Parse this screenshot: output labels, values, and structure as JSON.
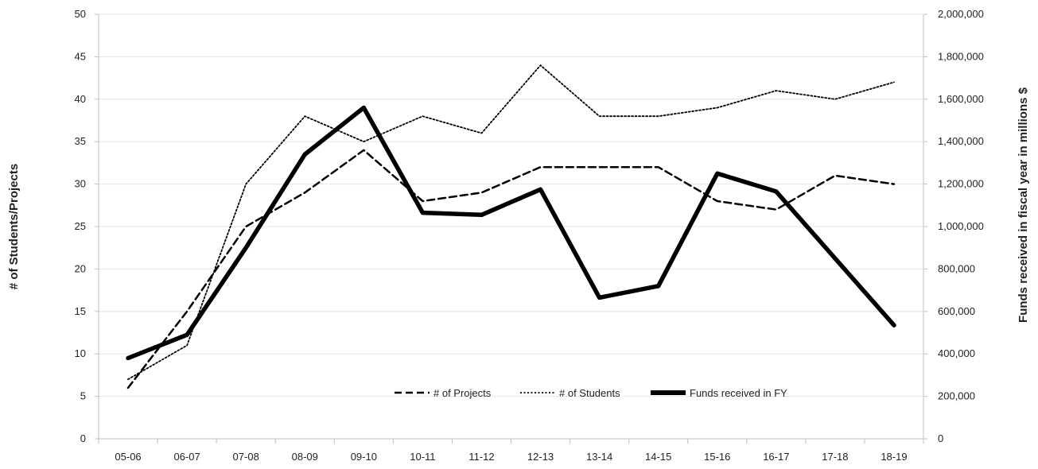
{
  "chart_data": {
    "type": "line",
    "categories": [
      "05-06",
      "06-07",
      "07-08",
      "08-09",
      "09-10",
      "10-11",
      "11-12",
      "12-13",
      "13-14",
      "14-15",
      "15-16",
      "16-17",
      "17-18",
      "18-19"
    ],
    "y_left": {
      "label": "# of Students/Projects",
      "range": [
        0,
        50
      ],
      "ticks": [
        "0",
        "5",
        "10",
        "15",
        "20",
        "25",
        "30",
        "35",
        "40",
        "45",
        "50"
      ],
      "tick_values": [
        0,
        5,
        10,
        15,
        20,
        25,
        30,
        35,
        40,
        45,
        50
      ]
    },
    "y_right": {
      "label": "Funds received in fiscal year in millions $",
      "range": [
        0,
        2000000
      ],
      "ticks": [
        "0",
        "200,000",
        "400,000",
        "600,000",
        "800,000",
        "1,000,000",
        "1,200,000",
        "1,400,000",
        "1,600,000",
        "1,800,000",
        "2,000,000"
      ],
      "tick_values": [
        0,
        200000,
        400000,
        600000,
        800000,
        1000000,
        1200000,
        1400000,
        1600000,
        1800000,
        2000000
      ]
    },
    "series": [
      {
        "name": "# of Projects",
        "axis": "left",
        "style": "dashed",
        "color": "#000000",
        "values": [
          6,
          15,
          25,
          29,
          34,
          28,
          29,
          32,
          32,
          32,
          28,
          27,
          31,
          30
        ]
      },
      {
        "name": "# of Students",
        "axis": "left",
        "style": "dotted",
        "color": "#000000",
        "values": [
          7,
          11,
          30,
          38,
          35,
          38,
          36,
          44,
          38,
          38,
          39,
          41,
          40,
          42
        ]
      },
      {
        "name": "Funds received in FY",
        "axis": "right",
        "style": "solid-thick",
        "color": "#000000",
        "values": [
          380000,
          490000,
          900000,
          1340000,
          1560000,
          1065000,
          1055000,
          1175000,
          665000,
          720000,
          1250000,
          1165000,
          850000,
          535000
        ]
      }
    ],
    "grid": true,
    "legend_position": "bottom-center-inside"
  }
}
